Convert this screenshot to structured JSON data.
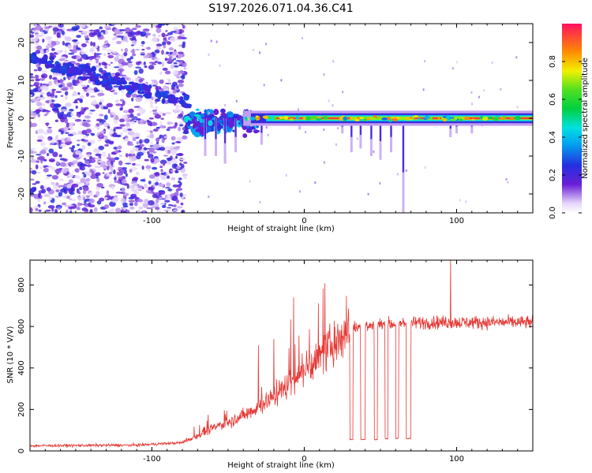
{
  "title": "S197.2026.071.04.36.C41",
  "colors": {
    "snr_line": "#e53935",
    "frame": "#000000"
  },
  "chart_data": [
    {
      "type": "heatmap",
      "name": "spectrogram",
      "xlabel": "Height of straight line (km)",
      "ylabel": "Frequency (Hz)",
      "xlim": [
        -180,
        150
      ],
      "ylim": [
        -25,
        25
      ],
      "xticks": [
        -100,
        0,
        100
      ],
      "xtick_labels": [
        "-100",
        "0",
        "100"
      ],
      "yticks": [
        -20,
        -10,
        0,
        10,
        20
      ],
      "ytick_labels": [
        "-20",
        "-10",
        "0",
        "10",
        "20"
      ],
      "colorbar": {
        "label": "Normalized spectral amplitude",
        "range": [
          0.0,
          1.0
        ],
        "ticks": [
          0.0,
          0.2,
          0.4,
          0.6,
          0.8
        ],
        "tick_labels": [
          "0.0",
          "0.2",
          "0.4",
          "0.6",
          "0.8"
        ],
        "colormap": "rainbow (white-violet-blue-cyan-green-yellow-orange-red)"
      },
      "features": {
        "noise_region_km": [
          -180,
          -78
        ],
        "diagonal_trace": {
          "from_km": -180,
          "from_hz": 16,
          "to_km": -75,
          "to_hz": 4
        },
        "narrowband_line_hz": 0,
        "narrowband_start_km": -40,
        "dropout_km": [
          30,
          37,
          44,
          50,
          57,
          65
        ]
      }
    },
    {
      "type": "line",
      "name": "snr",
      "xlabel": "Height of straight line (km)",
      "ylabel": "SNR (10 * V/V)",
      "xlim": [
        -180,
        150
      ],
      "ylim": [
        0,
        920
      ],
      "xticks": [
        -100,
        0,
        100
      ],
      "xtick_labels": [
        "-100",
        "0",
        "100"
      ],
      "yticks": [
        0,
        200,
        400,
        600,
        800
      ],
      "ytick_labels": [
        "0",
        "200",
        "400",
        "600",
        "800"
      ],
      "series": [
        {
          "name": "SNR",
          "trend_x": [
            -180,
            -110,
            -80,
            -60,
            -40,
            -20,
            -5,
            10,
            20,
            30,
            50,
            80,
            150
          ],
          "trend_y": [
            25,
            28,
            40,
            110,
            170,
            260,
            360,
            450,
            520,
            590,
            610,
            620,
            620
          ],
          "spikes": [
            {
              "x": -7,
              "y": 740
            },
            {
              "x": 96,
              "y": 920
            },
            {
              "x": -30,
              "y": 510
            },
            {
              "x": -20,
              "y": 540
            }
          ],
          "dropouts": [
            {
              "from": 30,
              "to": 32,
              "y": 55
            },
            {
              "from": 37,
              "to": 40,
              "y": 55
            },
            {
              "from": 46,
              "to": 48,
              "y": 55
            },
            {
              "from": 53,
              "to": 55,
              "y": 60
            },
            {
              "from": 60,
              "to": 62,
              "y": 60
            },
            {
              "from": 67,
              "to": 70,
              "y": 60
            }
          ]
        }
      ]
    }
  ]
}
